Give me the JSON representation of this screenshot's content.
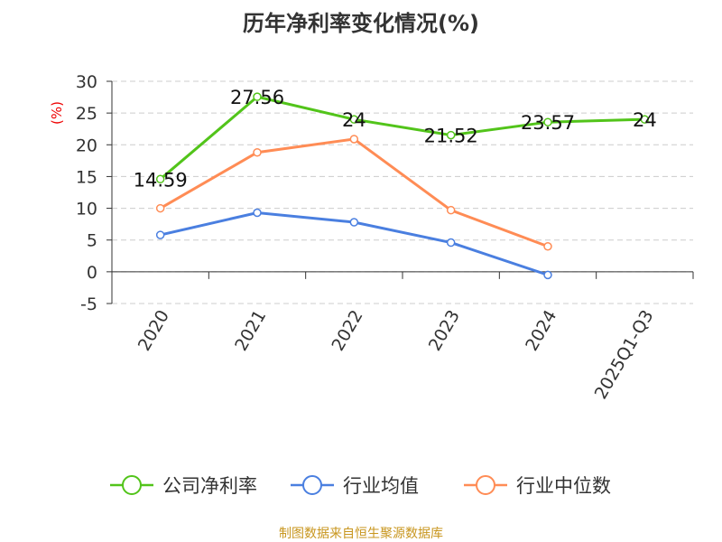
{
  "title": "历年净利率变化情况(%)",
  "source": "制图数据来自恒生聚源数据库",
  "chart_data": {
    "type": "line",
    "title": "历年净利率变化情况(%)",
    "ylabel": "(%)",
    "categories": [
      "2020",
      "2021",
      "2022",
      "2023",
      "2024",
      "2025Q1-Q3"
    ],
    "ylim": [
      -5,
      30
    ],
    "yticks": [
      -5,
      0,
      5,
      10,
      15,
      20,
      25,
      30
    ],
    "grid": true,
    "legend_position": "bottom",
    "series": [
      {
        "name": "公司净利率",
        "color": "#52c41a",
        "values": [
          14.59,
          27.56,
          24,
          21.52,
          23.57,
          24
        ],
        "labels": [
          "14.59",
          "27.56",
          "24",
          "21.52",
          "23.57",
          "24"
        ]
      },
      {
        "name": "行业均值",
        "color": "#4a7fe0",
        "values": [
          5.8,
          9.3,
          7.8,
          4.6,
          -0.5,
          null
        ]
      },
      {
        "name": "行业中位数",
        "color": "#ff8c55",
        "values": [
          10.0,
          18.8,
          20.9,
          9.7,
          4.0,
          null
        ]
      }
    ]
  }
}
